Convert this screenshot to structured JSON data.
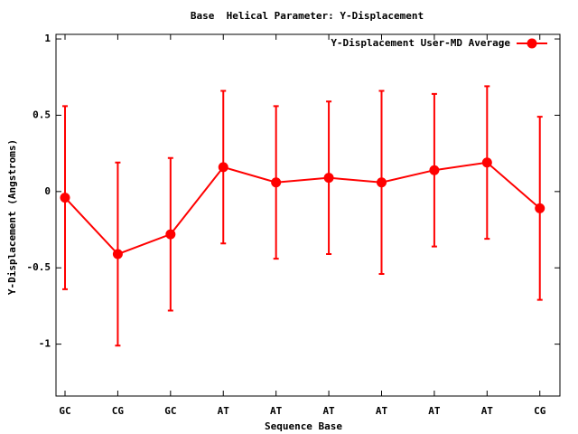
{
  "chart_data": {
    "type": "line",
    "title": "Base  Helical Parameter: Y-Displacement",
    "x_label": "Sequence Base",
    "y_label": "Y-Displacement (Angstroms)",
    "categories": [
      "GC",
      "CG",
      "GC",
      "AT",
      "AT",
      "AT",
      "AT",
      "AT",
      "AT",
      "CG"
    ],
    "series": [
      {
        "name": "Y-Displacement User-MD Average",
        "color": "#ff0000",
        "values": [
          -0.04,
          -0.41,
          -0.28,
          0.16,
          0.06,
          0.09,
          0.06,
          0.14,
          0.19,
          -0.11
        ],
        "errors": [
          0.6,
          0.6,
          0.5,
          0.5,
          0.5,
          0.5,
          0.6,
          0.5,
          0.5,
          0.6
        ]
      }
    ],
    "ylim": [
      -1.34,
      1.03
    ],
    "yticks": [
      1,
      0.5,
      0,
      -0.5,
      -1
    ],
    "legend": "top-right"
  }
}
